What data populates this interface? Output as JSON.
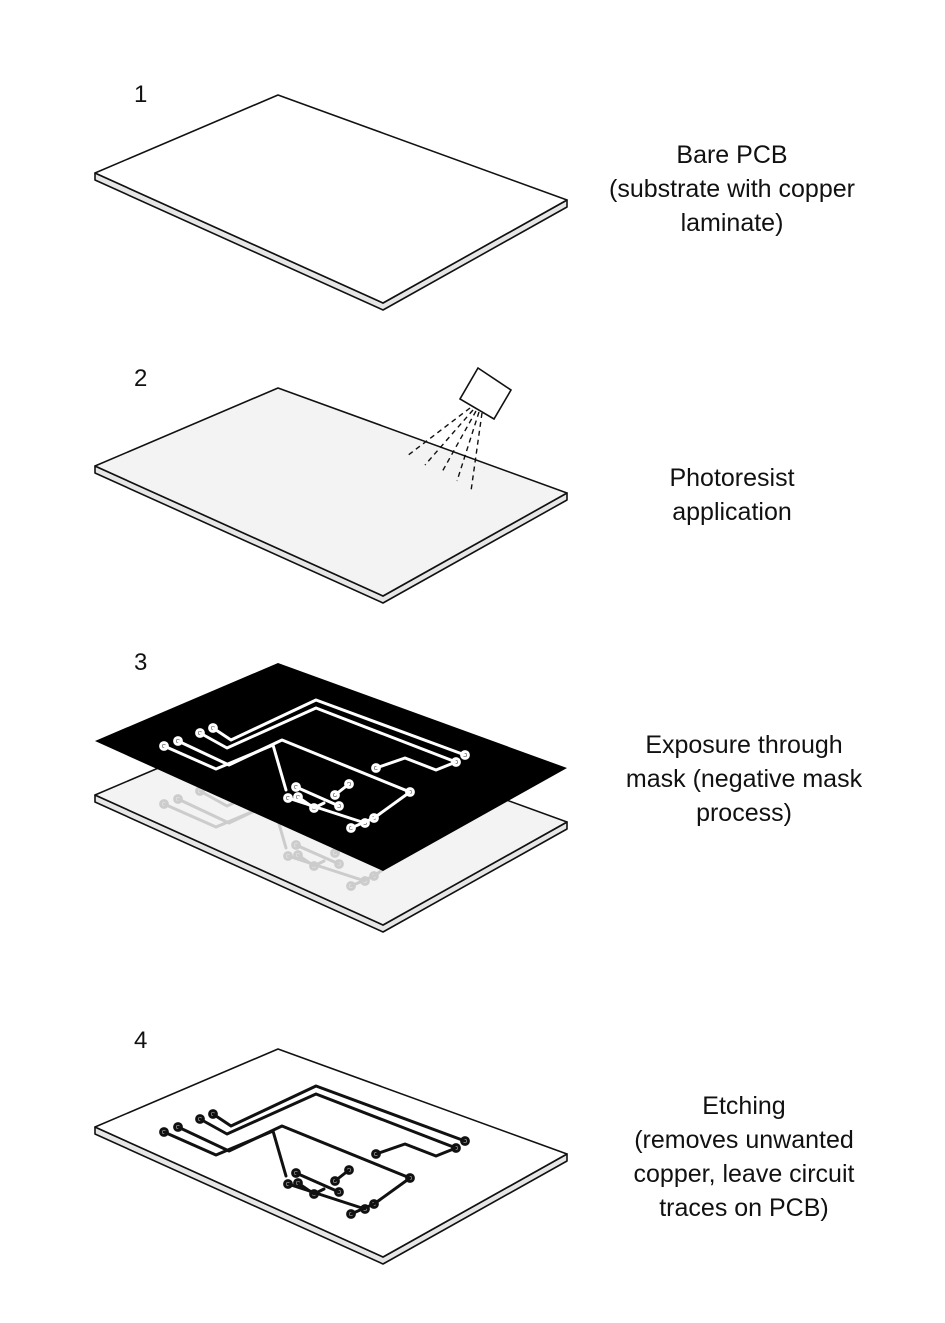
{
  "steps": [
    {
      "number": "1",
      "caption": [
        "Bare PCB",
        "(substrate with copper",
        "laminate)"
      ]
    },
    {
      "number": "2",
      "caption": [
        "Photoresist",
        "application"
      ]
    },
    {
      "number": "3",
      "caption": [
        "Exposure through",
        "mask (negative mask",
        "process)"
      ]
    },
    {
      "number": "4",
      "caption": [
        "Etching",
        "(removes unwanted",
        "copper, leave circuit",
        "traces on PCB)"
      ]
    }
  ],
  "colors": {
    "outline": "#111111",
    "board_bare": "#ffffff",
    "board_resist": "#f3f3f3",
    "board_edge": "#e6e6e6",
    "mask": "#000000",
    "trace_on_mask": "#ffffff",
    "trace_faint": "#cccccc",
    "trace_etched": "#111111"
  },
  "icons": {
    "spray_nozzle": "spray-nozzle-icon"
  }
}
